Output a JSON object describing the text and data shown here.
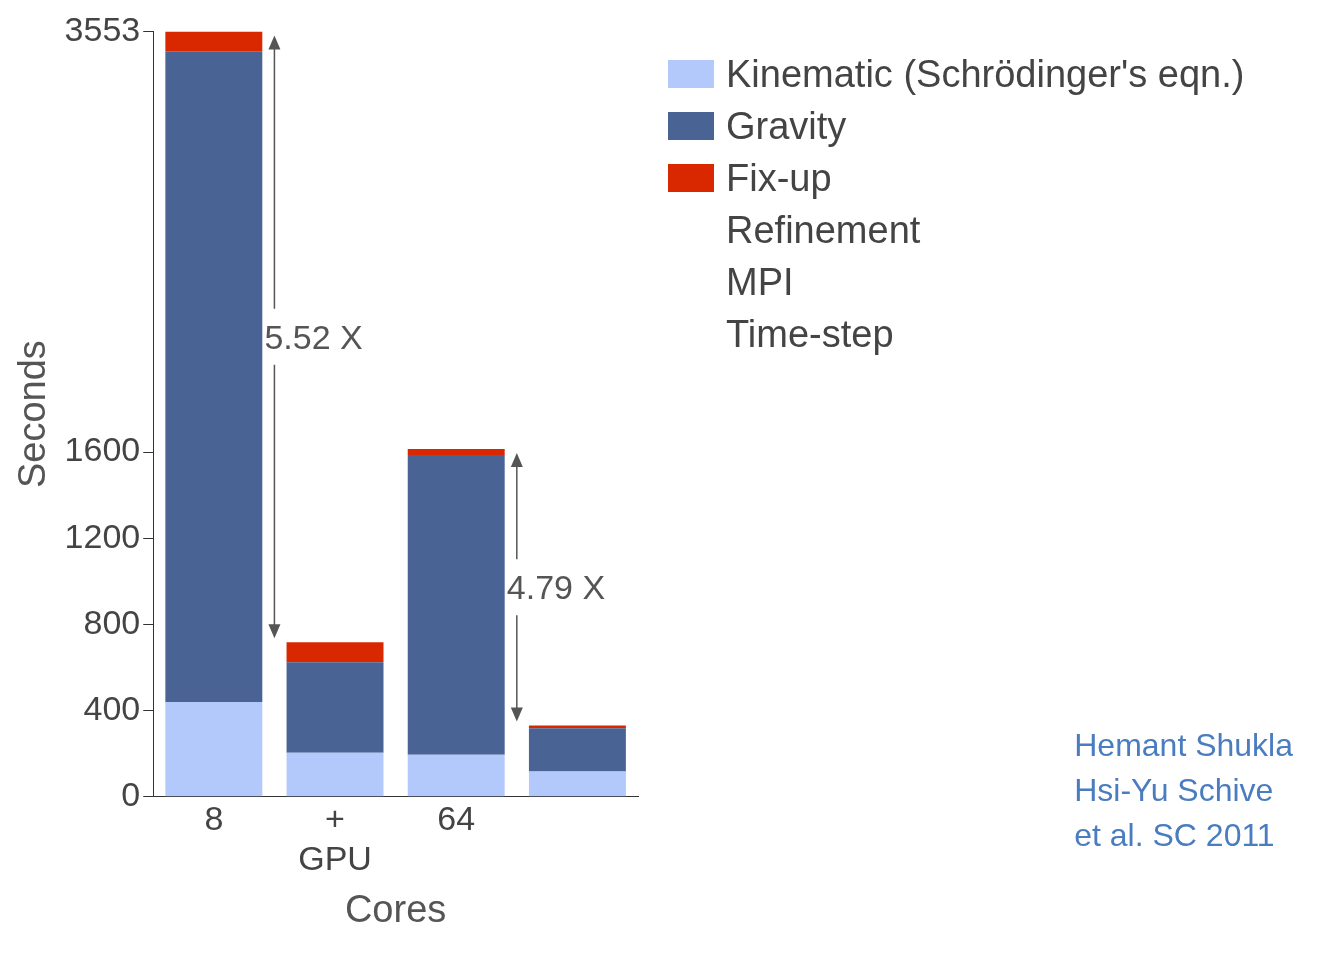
{
  "chart_data": {
    "type": "bar",
    "stacked": true,
    "xlabel": "Cores",
    "ylabel": "Seconds",
    "categories": [
      "8",
      "+ GPU",
      "64",
      null
    ],
    "series": [
      {
        "name": "Kinematic (Schrödinger's eqn.)",
        "color": "#b3c8fb",
        "values": [
          440,
          205,
          195,
          118
        ]
      },
      {
        "name": "Gravity",
        "color": "#4a6395",
        "values": [
          3021,
          420,
          1392,
          200
        ]
      },
      {
        "name": "Fix-up",
        "color": "#d92800",
        "values": [
          92,
          92,
          28,
          13
        ]
      },
      {
        "name": "Refinement",
        "values": [
          0,
          0,
          0,
          0
        ]
      },
      {
        "name": "MPI",
        "values": [
          0,
          0,
          0,
          0
        ]
      },
      {
        "name": "Time-step",
        "values": [
          0,
          0,
          0,
          0
        ]
      }
    ],
    "ylim": [
      0,
      3553
    ],
    "yticks": [
      0,
      400,
      800,
      1200,
      1600,
      3553
    ],
    "grid": false,
    "legend": "right",
    "annotations": [
      "5.52 X",
      "4.79 X",
      "Hemant Shukla\nHsi-Yu Schive\net al. SC 2011"
    ]
  }
}
